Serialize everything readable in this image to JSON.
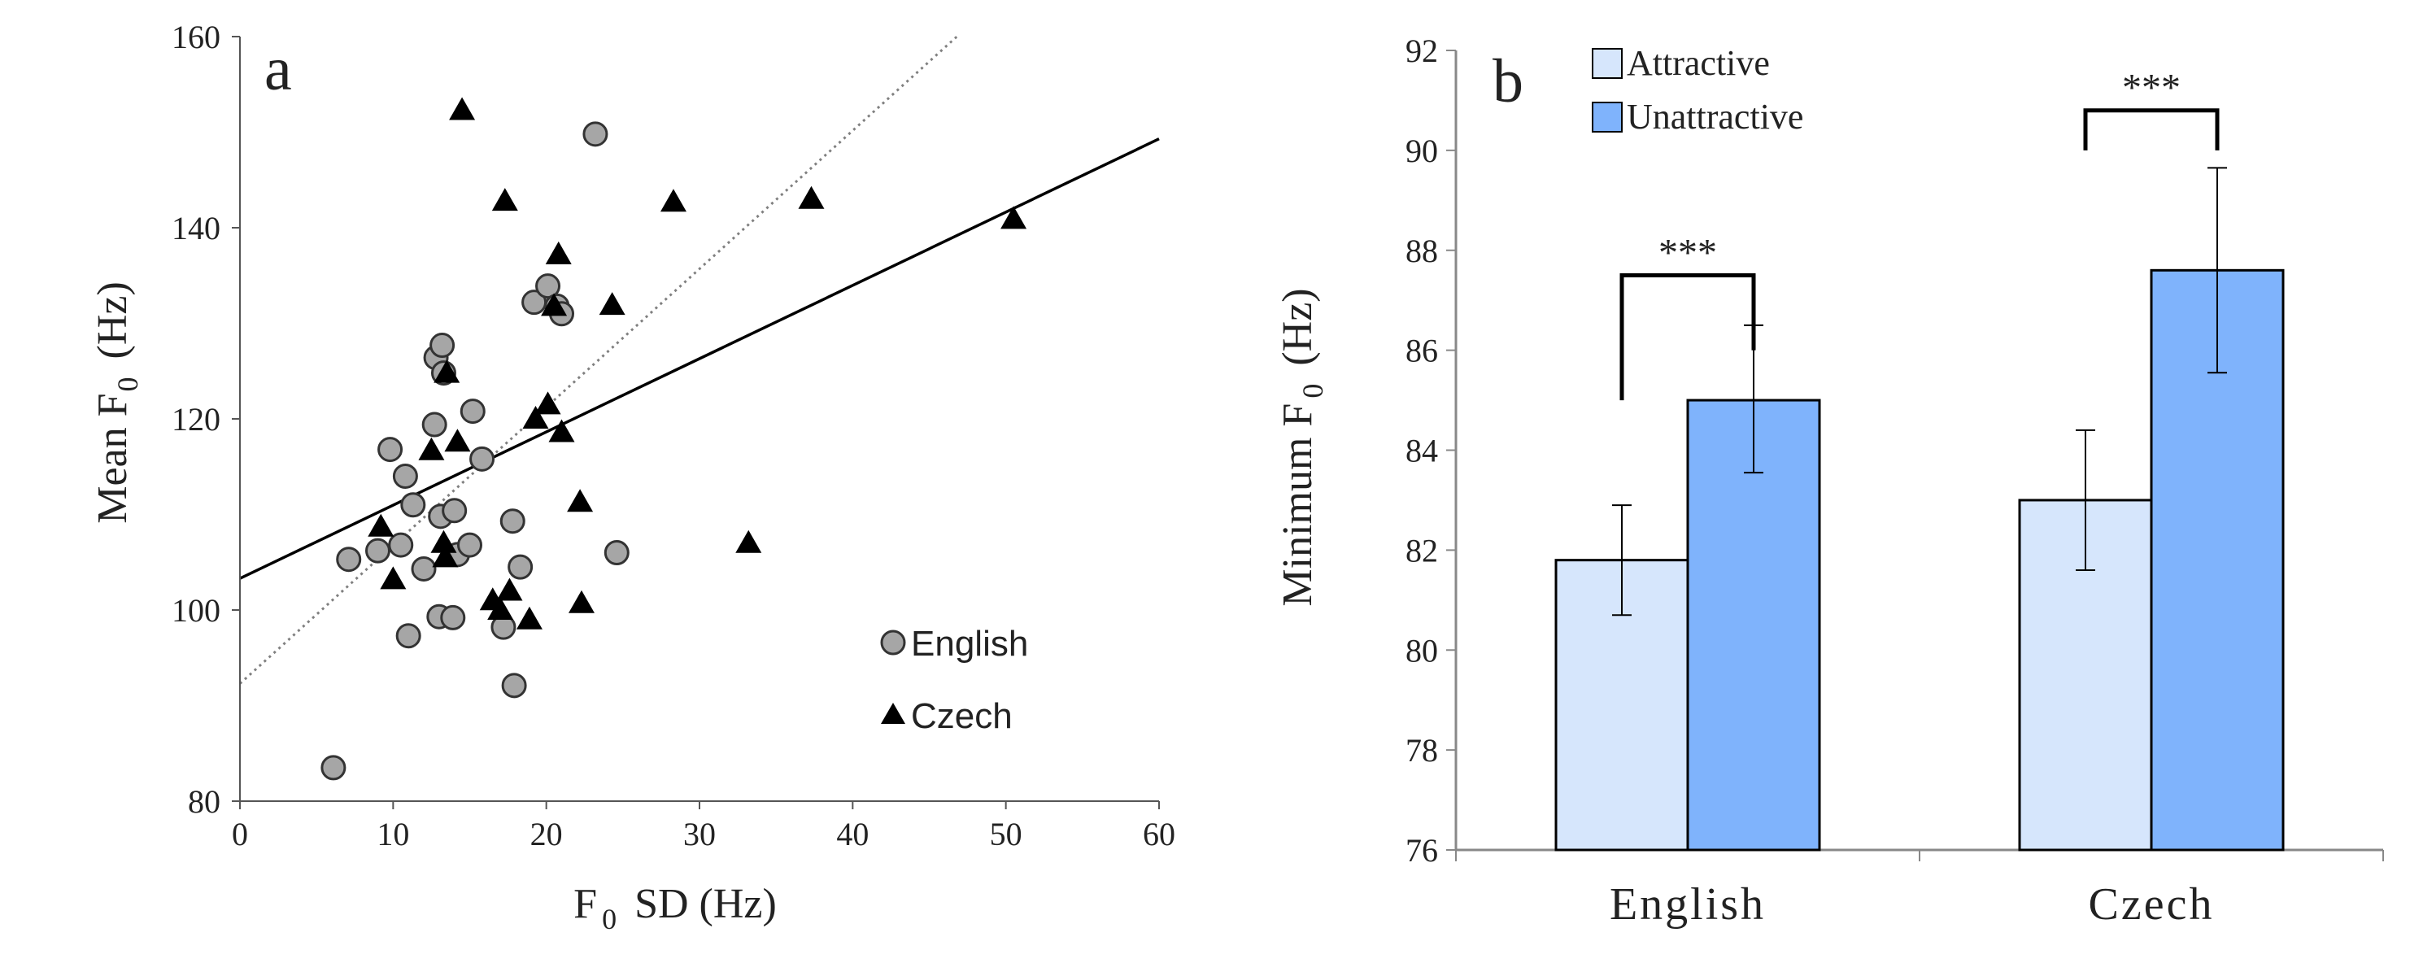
{
  "chart_data": [
    {
      "panel_label": "a",
      "type": "scatter",
      "xlabel": "F0 SD (Hz)",
      "xlabel_main": "F",
      "xlabel_sub": "0",
      "xlabel_rest": "SD (Hz)",
      "ylabel": "Mean F0 (Hz)",
      "ylabel_main": "Mean F",
      "ylabel_sub": "0",
      "ylabel_rest": "(Hz)",
      "xlim": [
        0,
        60
      ],
      "ylim": [
        80,
        160
      ],
      "xticks": [
        0,
        10,
        20,
        30,
        40,
        50,
        60
      ],
      "yticks": [
        80,
        100,
        120,
        140,
        160
      ],
      "grid": false,
      "legend_position": "bottom-right",
      "series": [
        {
          "name": "English",
          "marker": "circle",
          "color": "#a6a6a6",
          "points": [
            [
              6.1,
              83.5
            ],
            [
              7.1,
              105.3
            ],
            [
              9.0,
              106.2
            ],
            [
              9.8,
              116.8
            ],
            [
              10.5,
              106.8
            ],
            [
              10.8,
              114.0
            ],
            [
              11.0,
              97.3
            ],
            [
              11.3,
              111.0
            ],
            [
              12.0,
              104.3
            ],
            [
              12.7,
              119.4
            ],
            [
              12.8,
              126.4
            ],
            [
              13.0,
              99.3
            ],
            [
              13.1,
              109.8
            ],
            [
              13.2,
              127.7
            ],
            [
              13.3,
              124.8
            ],
            [
              13.9,
              99.2
            ],
            [
              14.0,
              110.4
            ],
            [
              14.2,
              105.8
            ],
            [
              15.0,
              106.8
            ],
            [
              15.2,
              120.8
            ],
            [
              15.8,
              115.8
            ],
            [
              17.2,
              98.2
            ],
            [
              17.8,
              109.3
            ],
            [
              17.9,
              92.1
            ],
            [
              18.3,
              104.5
            ],
            [
              19.2,
              132.2
            ],
            [
              20.1,
              133.9
            ],
            [
              20.7,
              131.8
            ],
            [
              21.0,
              131.0
            ],
            [
              23.2,
              149.8
            ],
            [
              24.6,
              106.0
            ]
          ]
        },
        {
          "name": "Czech",
          "marker": "triangle",
          "color": "#000000",
          "points": [
            [
              9.2,
              108.7
            ],
            [
              10.0,
              103.2
            ],
            [
              12.5,
              116.7
            ],
            [
              13.3,
              107.0
            ],
            [
              13.4,
              105.5
            ],
            [
              13.5,
              124.8
            ],
            [
              14.2,
              117.6
            ],
            [
              14.5,
              152.3
            ],
            [
              16.5,
              101.0
            ],
            [
              17.0,
              100.0
            ],
            [
              17.3,
              142.8
            ],
            [
              17.6,
              102.0
            ],
            [
              18.9,
              99.0
            ],
            [
              19.3,
              120.0
            ],
            [
              20.1,
              121.5
            ],
            [
              20.5,
              131.8
            ],
            [
              20.8,
              137.2
            ],
            [
              21.0,
              118.6
            ],
            [
              22.2,
              111.3
            ],
            [
              22.3,
              100.7
            ],
            [
              24.3,
              131.9
            ],
            [
              28.3,
              142.7
            ],
            [
              33.2,
              107.0
            ],
            [
              37.3,
              143.0
            ],
            [
              50.5,
              140.9
            ]
          ]
        }
      ],
      "fit_lines": [
        {
          "style": "solid",
          "color": "#000000",
          "x": [
            0,
            60
          ],
          "y": [
            103.3,
            149.3
          ]
        },
        {
          "style": "dotted",
          "color": "#808080",
          "x": [
            0,
            46.8
          ],
          "y": [
            92.3,
            160
          ]
        }
      ]
    },
    {
      "panel_label": "b",
      "type": "bar",
      "ylabel": "Minimum F0 (Hz)",
      "ylabel_main": "Minimum F",
      "ylabel_sub": "0",
      "ylabel_rest": "(Hz)",
      "categories": [
        "English",
        "Czech"
      ],
      "ylim": [
        76,
        92
      ],
      "yticks": [
        76,
        78,
        80,
        82,
        84,
        86,
        88,
        90,
        92
      ],
      "grid": false,
      "legend_position": "top-left",
      "series": [
        {
          "name": "Attractive",
          "color": "#d6e6fc",
          "values": [
            81.8,
            83.0
          ],
          "err_low": [
            80.7,
            81.6
          ],
          "err_high": [
            82.9,
            84.4
          ]
        },
        {
          "name": "Unattractive",
          "color": "#7fb3fc",
          "values": [
            85.0,
            87.6
          ],
          "err_low": [
            83.55,
            85.55
          ],
          "err_high": [
            86.5,
            89.65
          ]
        }
      ],
      "significance": [
        {
          "category": "English",
          "label": "***",
          "left_y": 85.0,
          "right_y": 86.0,
          "top_y": 87.5
        },
        {
          "category": "Czech",
          "label": "***",
          "left_y": 90.0,
          "right_y": 90.0,
          "top_y": 90.8
        }
      ]
    }
  ]
}
